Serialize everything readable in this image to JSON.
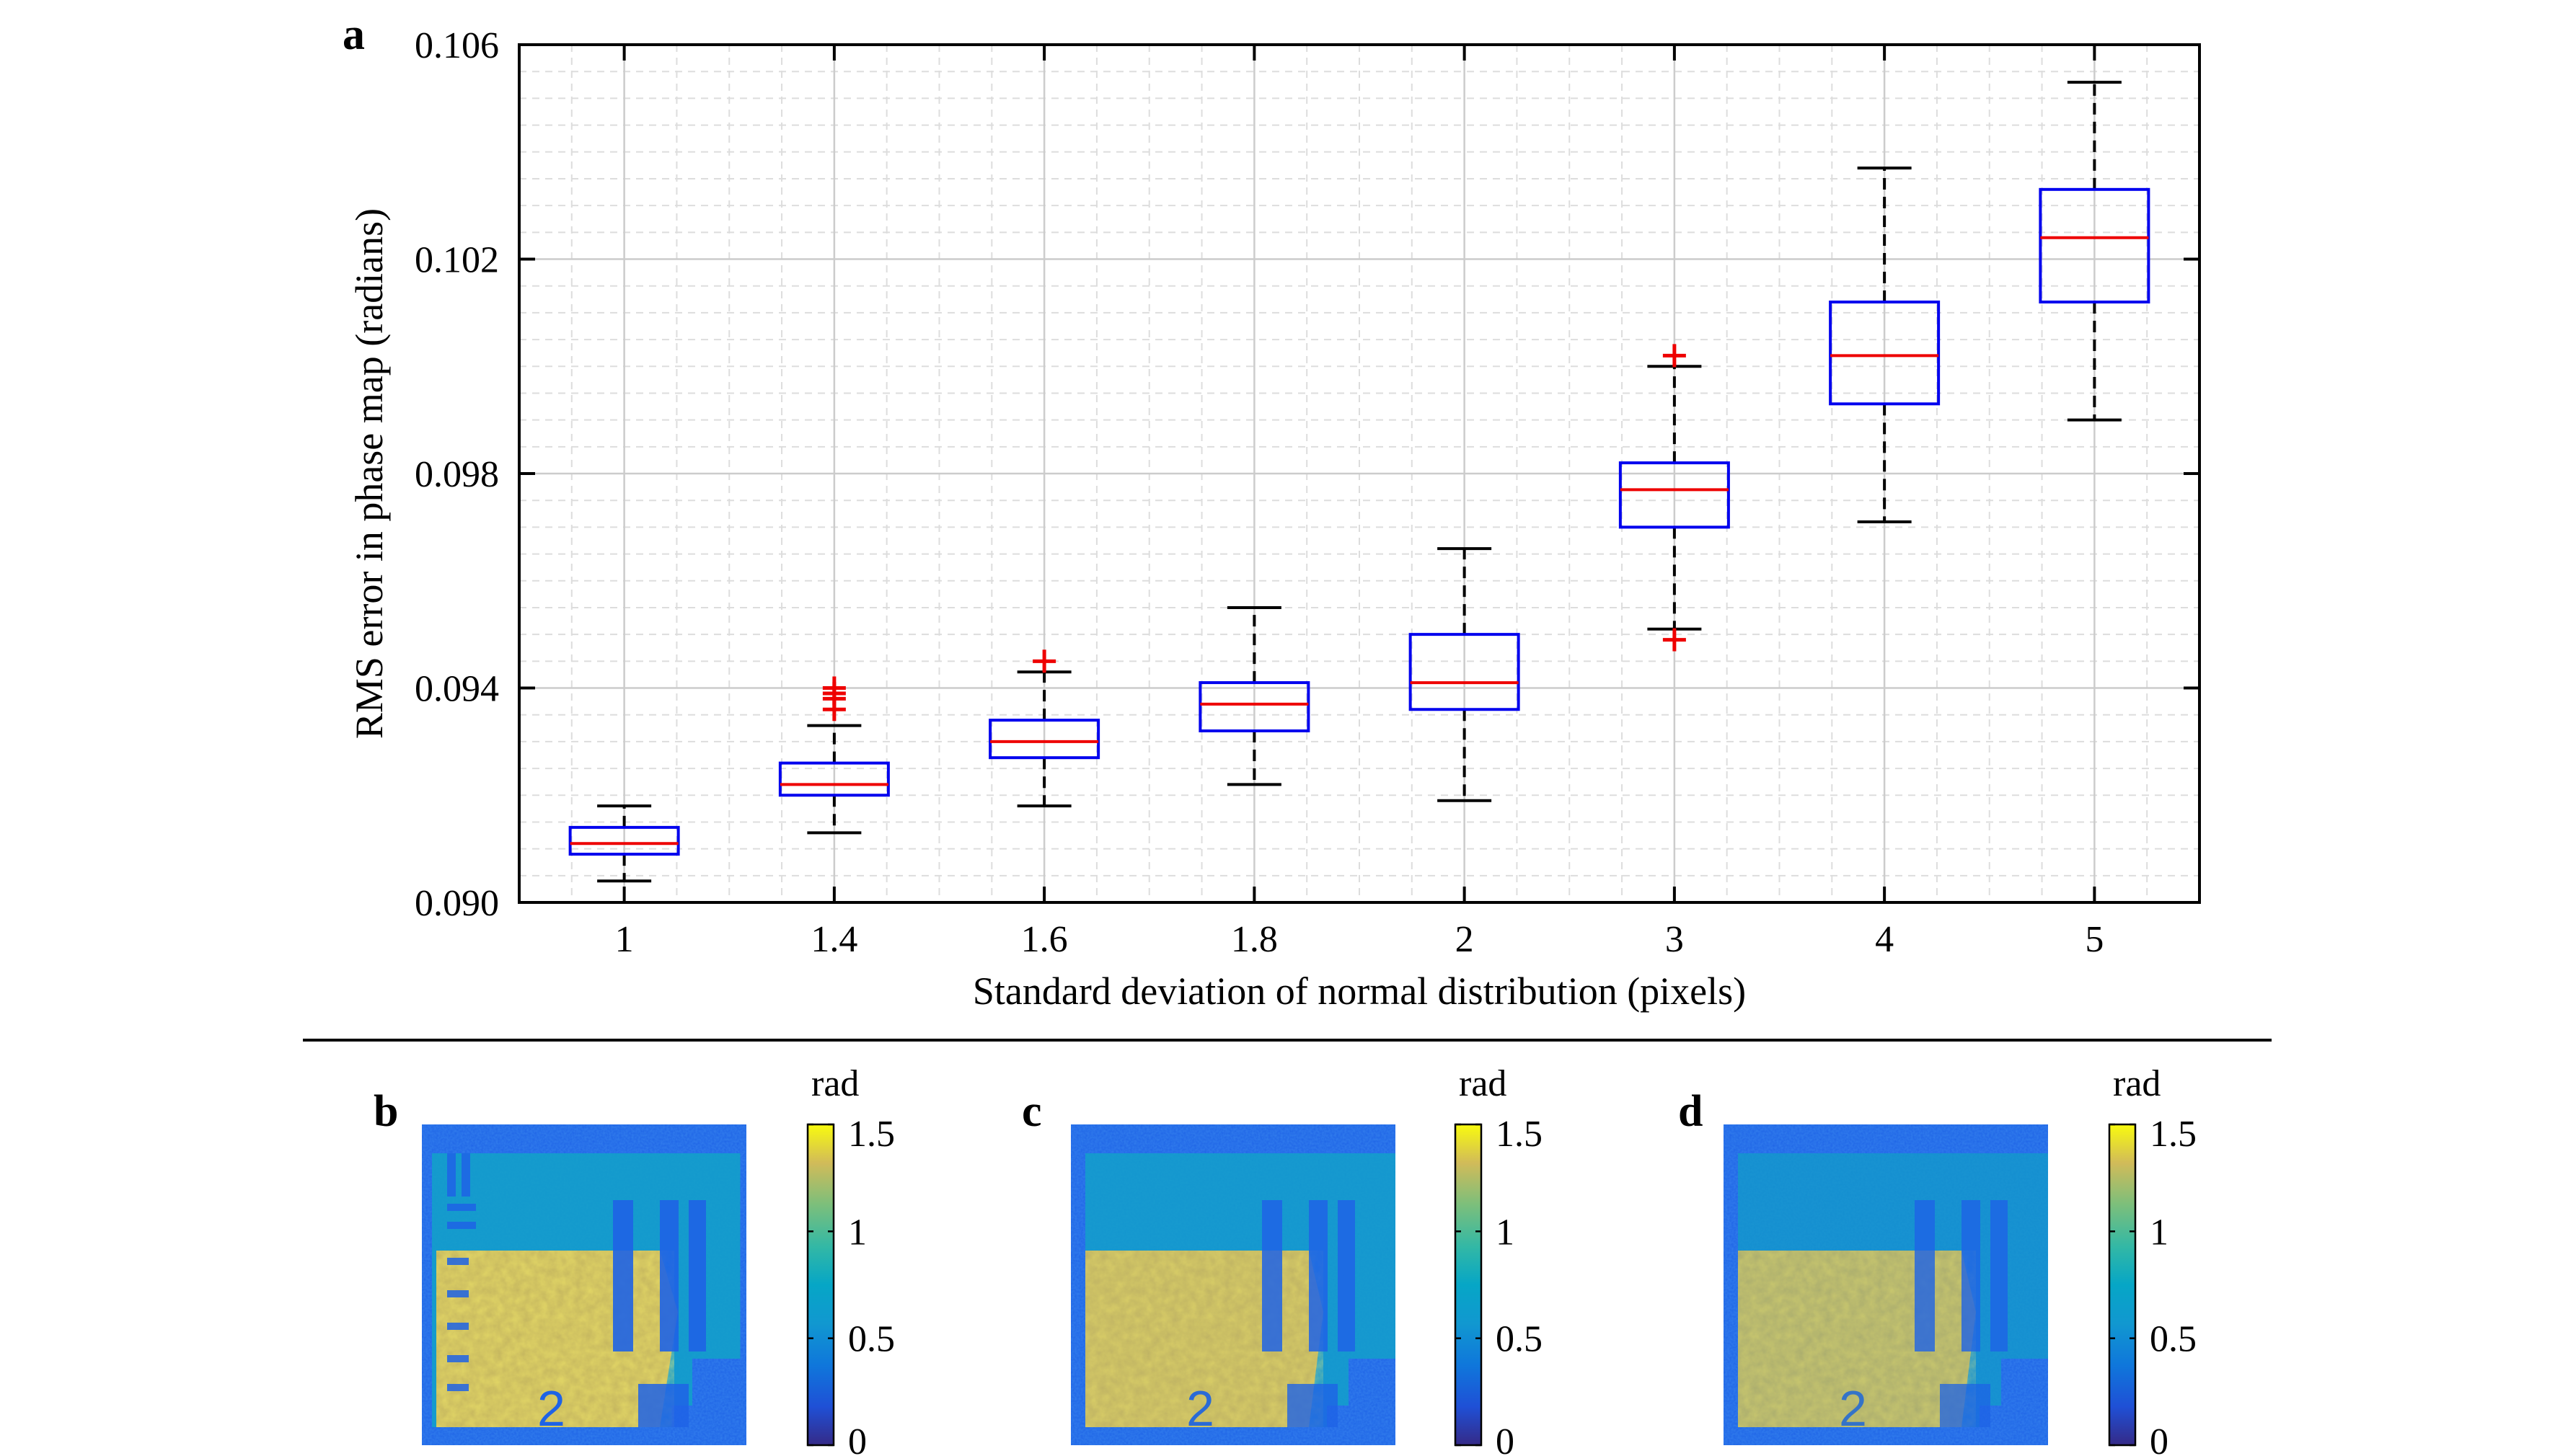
{
  "panels": {
    "a": "a",
    "b": "b",
    "c": "c",
    "d": "d"
  },
  "chart_data": [
    {
      "type": "box",
      "panel": "a",
      "title": "",
      "xlabel": "Standard deviation of normal distribution (pixels)",
      "ylabel": "RMS error in phase map (radians)",
      "ylim": [
        0.09,
        0.106
      ],
      "yticks": [
        "0.090",
        "0.094",
        "0.098",
        "0.102",
        "0.106"
      ],
      "ytick_values": [
        0.09,
        0.094,
        0.098,
        0.102,
        0.106
      ],
      "grid": true,
      "categories": [
        "1",
        "1.4",
        "1.6",
        "1.8",
        "2",
        "3",
        "4",
        "5"
      ],
      "boxes": [
        {
          "whisker_low": 0.0904,
          "q1": 0.0909,
          "median": 0.0911,
          "q3": 0.0914,
          "whisker_high": 0.0918,
          "outliers": []
        },
        {
          "whisker_low": 0.0913,
          "q1": 0.092,
          "median": 0.0922,
          "q3": 0.0926,
          "whisker_high": 0.0933,
          "outliers": [
            0.0936,
            0.0938,
            0.0939,
            0.094
          ]
        },
        {
          "whisker_low": 0.0918,
          "q1": 0.0927,
          "median": 0.093,
          "q3": 0.0934,
          "whisker_high": 0.0943,
          "outliers": [
            0.0945
          ]
        },
        {
          "whisker_low": 0.0922,
          "q1": 0.0932,
          "median": 0.0937,
          "q3": 0.0941,
          "whisker_high": 0.0955,
          "outliers": []
        },
        {
          "whisker_low": 0.0919,
          "q1": 0.0936,
          "median": 0.0941,
          "q3": 0.095,
          "whisker_high": 0.0966,
          "outliers": []
        },
        {
          "whisker_low": 0.0951,
          "q1": 0.097,
          "median": 0.0977,
          "q3": 0.0982,
          "whisker_high": 0.1,
          "outliers": [
            0.0949,
            0.1002
          ]
        },
        {
          "whisker_low": 0.0971,
          "q1": 0.0993,
          "median": 0.1002,
          "q3": 0.1012,
          "whisker_high": 0.1037,
          "outliers": []
        },
        {
          "whisker_low": 0.099,
          "q1": 0.1012,
          "median": 0.1024,
          "q3": 0.1033,
          "whisker_high": 0.1053,
          "outliers": []
        }
      ],
      "colors": {
        "box": "#0000ee",
        "median": "#ee0000",
        "whisker": "#000000",
        "outlier": "#ee0000",
        "grid": "#dddddd"
      }
    },
    {
      "type": "heatmap",
      "panel": "b",
      "colorbar": {
        "label": "rad",
        "ticks": [
          "1.5",
          "1",
          "0.5",
          "0"
        ],
        "tick_values": [
          1.5,
          1.0,
          0.5,
          0.0
        ],
        "range": [
          0,
          1.5
        ]
      },
      "colormap": "parula",
      "overlay_text": "2"
    },
    {
      "type": "heatmap",
      "panel": "c",
      "colorbar": {
        "label": "rad",
        "ticks": [
          "1.5",
          "1",
          "0.5",
          "0"
        ],
        "tick_values": [
          1.5,
          1.0,
          0.5,
          0.0
        ],
        "range": [
          0,
          1.5
        ]
      },
      "colormap": "parula",
      "overlay_text": "2"
    },
    {
      "type": "heatmap",
      "panel": "d",
      "colorbar": {
        "label": "rad",
        "ticks": [
          "1.5",
          "1",
          "0.5",
          "0"
        ],
        "tick_values": [
          1.5,
          1.0,
          0.5,
          0.0
        ],
        "range": [
          0,
          1.5
        ]
      },
      "colormap": "parula",
      "overlay_text": "2"
    }
  ]
}
